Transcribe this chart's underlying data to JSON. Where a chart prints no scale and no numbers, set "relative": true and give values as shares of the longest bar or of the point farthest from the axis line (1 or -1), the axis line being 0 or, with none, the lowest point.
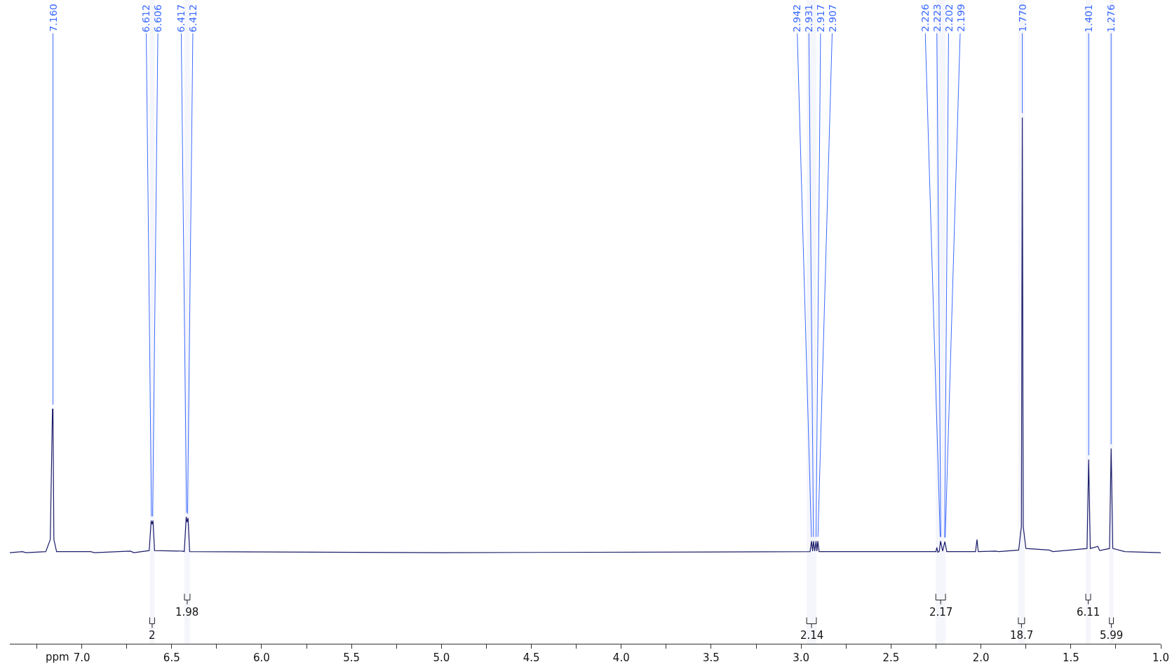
{
  "chart_data": {
    "type": "line",
    "relative": true,
    "xlabel": "ppm",
    "xlim": [
      7.4,
      1.0
    ],
    "xticks": [
      {
        "value": 7.25,
        "label": null
      },
      {
        "value": 7,
        "label": "7.0"
      },
      {
        "value": 6.75,
        "label": null
      },
      {
        "value": 6.5,
        "label": "6.5"
      },
      {
        "value": 6.25,
        "label": null
      },
      {
        "value": 6,
        "label": "6.0"
      },
      {
        "value": 5.75,
        "label": null
      },
      {
        "value": 5.5,
        "label": "5.5"
      },
      {
        "value": 5.25,
        "label": null
      },
      {
        "value": 5,
        "label": "5.0"
      },
      {
        "value": 4.75,
        "label": null
      },
      {
        "value": 4.5,
        "label": "4.5"
      },
      {
        "value": 4.25,
        "label": null
      },
      {
        "value": 4,
        "label": "4.0"
      },
      {
        "value": 3.75,
        "label": null
      },
      {
        "value": 3.5,
        "label": "3.5"
      },
      {
        "value": 3.25,
        "label": null
      },
      {
        "value": 3,
        "label": "3.0"
      },
      {
        "value": 2.75,
        "label": null
      },
      {
        "value": 2.5,
        "label": "2.5"
      },
      {
        "value": 2.25,
        "label": null
      },
      {
        "value": 2,
        "label": "2.0"
      },
      {
        "value": 1.75,
        "label": null
      },
      {
        "value": 1.5,
        "label": "1.5"
      },
      {
        "value": 1.25,
        "label": null
      },
      {
        "value": 1,
        "label": "1.0"
      }
    ],
    "series": [
      {
        "color": "#1c1c6b",
        "x": [
          7.4,
          7.33,
          7.31,
          7.2,
          7.175,
          7.163,
          7.16,
          7.155,
          7.14,
          6.95,
          6.93,
          6.73,
          6.71,
          6.625,
          6.614,
          6.609,
          6.604,
          6.595,
          6.44,
          6.43,
          6.419,
          6.414,
          6.409,
          6.4,
          5.0,
          2.95,
          2.942,
          2.936,
          2.931,
          2.924,
          2.917,
          2.912,
          2.907,
          2.9,
          2.25,
          2.245,
          2.24,
          2.232,
          2.2245,
          2.213,
          2.2005,
          2.19,
          2.03,
          2.022,
          2.015,
          1.92,
          1.9,
          1.79,
          1.775,
          1.77,
          1.765,
          1.75,
          1.62,
          1.6,
          1.41,
          1.401,
          1.392,
          1.35,
          1.34,
          1.285,
          1.276,
          1.267,
          1.2,
          1.0
        ],
        "values": [
          0.173,
          0.175,
          0.173,
          0.175,
          0.198,
          0.446,
          0.446,
          0.198,
          0.175,
          0.175,
          0.173,
          0.176,
          0.173,
          0.177,
          0.234,
          0.227,
          0.234,
          0.177,
          0.176,
          0.175,
          0.241,
          0.231,
          0.239,
          0.175,
          0.173,
          0.175,
          0.195,
          0.176,
          0.195,
          0.176,
          0.195,
          0.176,
          0.195,
          0.175,
          0.175,
          0.183,
          0.174,
          0.175,
          0.195,
          0.176,
          0.194,
          0.175,
          0.175,
          0.198,
          0.175,
          0.176,
          0.175,
          0.178,
          0.223,
          1.0,
          0.223,
          0.181,
          0.178,
          0.175,
          0.181,
          0.35,
          0.181,
          0.185,
          0.177,
          0.181,
          0.371,
          0.181,
          0.175,
          0.173
        ]
      }
    ],
    "annotations": [
      {
        "text": "7.160",
        "x": 7.16,
        "y": 0.446
      },
      {
        "text": "6.612",
        "x": 6.612,
        "y": 0.234
      },
      {
        "text": "6.606",
        "x": 6.606,
        "y": 0.234
      },
      {
        "text": "6.417",
        "x": 6.417,
        "y": 0.241
      },
      {
        "text": "6.412",
        "x": 6.412,
        "y": 0.239
      },
      {
        "text": "2.942",
        "x": 2.942,
        "y": 0.195
      },
      {
        "text": "2.931",
        "x": 2.931,
        "y": 0.195
      },
      {
        "text": "2.917",
        "x": 2.917,
        "y": 0.195
      },
      {
        "text": "2.907",
        "x": 2.907,
        "y": 0.195
      },
      {
        "text": "2.226",
        "x": 2.226,
        "y": 0.195
      },
      {
        "text": "2.223",
        "x": 2.223,
        "y": 0.195
      },
      {
        "text": "2.202",
        "x": 2.202,
        "y": 0.194
      },
      {
        "text": "2.199",
        "x": 2.199,
        "y": 0.194
      },
      {
        "text": "1.770",
        "x": 1.77,
        "y": 1.0
      },
      {
        "text": "1.401",
        "x": 1.401,
        "y": 0.35
      },
      {
        "text": "1.276",
        "x": 1.276,
        "y": 0.371
      }
    ],
    "bands": [
      {
        "axis": "x",
        "from": 6.622,
        "to": 6.595,
        "label": "2"
      },
      {
        "axis": "x",
        "from": 6.429,
        "to": 6.398,
        "label": "1.98"
      },
      {
        "axis": "x",
        "from": 2.969,
        "to": 2.915,
        "label": "2.14"
      },
      {
        "axis": "x",
        "from": 2.251,
        "to": 2.197,
        "label": "2.17"
      },
      {
        "axis": "x",
        "from": 1.792,
        "to": 1.757,
        "label": "18.7"
      },
      {
        "axis": "x",
        "from": 1.417,
        "to": 1.39,
        "label": "6.11"
      },
      {
        "axis": "x",
        "from": 1.286,
        "to": 1.263,
        "label": "5.99"
      }
    ]
  }
}
